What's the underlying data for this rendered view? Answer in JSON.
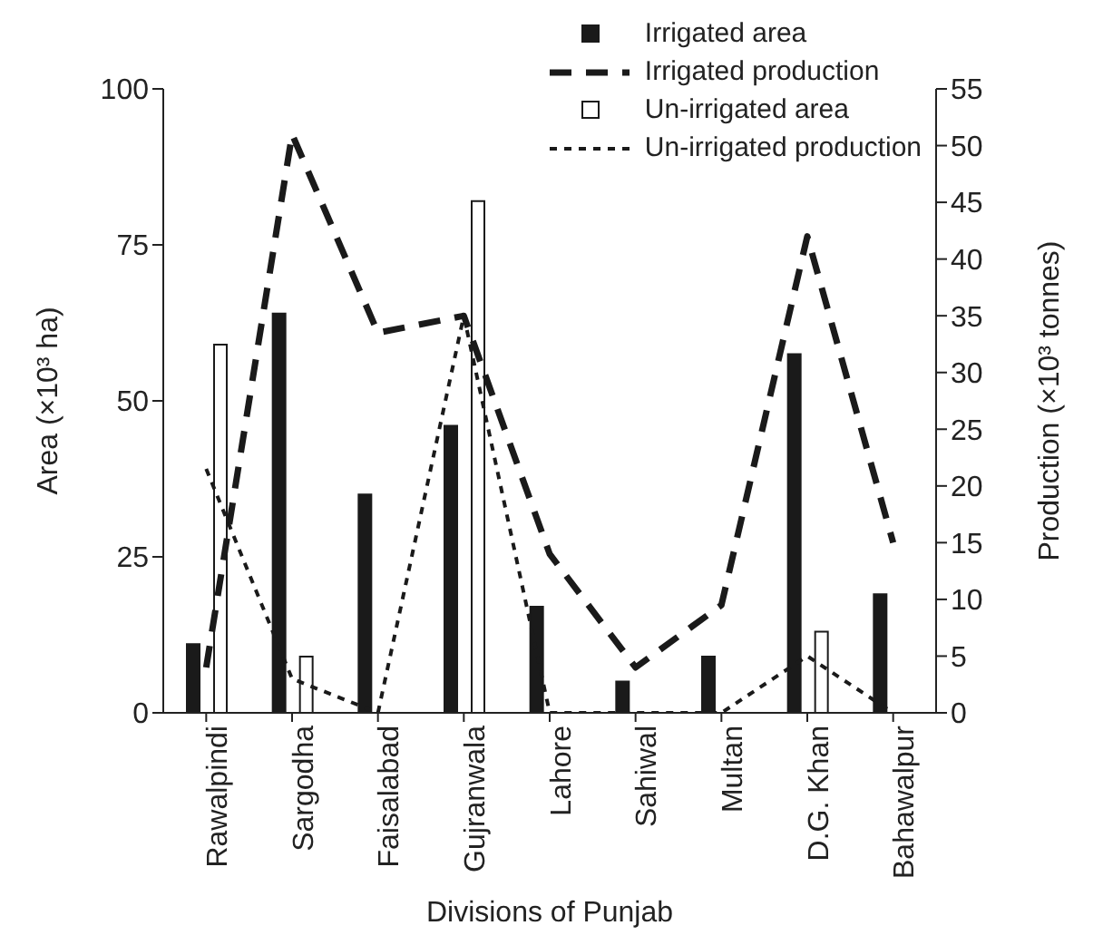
{
  "chart_data": {
    "type": "bar",
    "xlabel": "Divisions of Punjab",
    "ylabel": "Area (×10³ ha)",
    "y2label": "Production (×10³ tonnes)",
    "categories": [
      "Rawalpindi",
      "Sargodha",
      "Faisalabad",
      "Gujranwala",
      "Lahore",
      "Sahiwal",
      "Multan",
      "D.G. Khan",
      "Bahawalpur"
    ],
    "series": [
      {
        "name": "Irrigated area",
        "color": "#1a1a1a",
        "values": [
          11,
          64,
          35,
          46,
          17,
          5,
          9,
          57.5,
          19
        ]
      },
      {
        "name": "Irrigated production",
        "type": "line",
        "axis": "y2",
        "line_style": "dashed",
        "color": "#1a1a1a",
        "values": [
          4,
          51,
          33.5,
          35,
          14,
          4,
          9.5,
          42,
          15
        ]
      },
      {
        "name": "Un-irrigated area",
        "color": "#ffffff",
        "values": [
          59,
          9,
          null,
          82,
          null,
          null,
          null,
          13,
          null
        ]
      },
      {
        "name": "Un-irrigated production",
        "type": "line",
        "axis": "y2",
        "line_style": "dotted",
        "color": "#1a1a1a",
        "values": [
          21.5,
          3,
          0,
          35,
          0,
          0,
          0,
          5,
          0
        ]
      }
    ],
    "ylim": [
      0,
      100
    ],
    "yticks": [
      0,
      25,
      50,
      75,
      100
    ],
    "y2lim": [
      0,
      55
    ],
    "y2ticks": [
      0,
      5,
      10,
      15,
      20,
      25,
      30,
      35,
      40,
      45,
      50,
      55
    ],
    "legend": "top right"
  }
}
